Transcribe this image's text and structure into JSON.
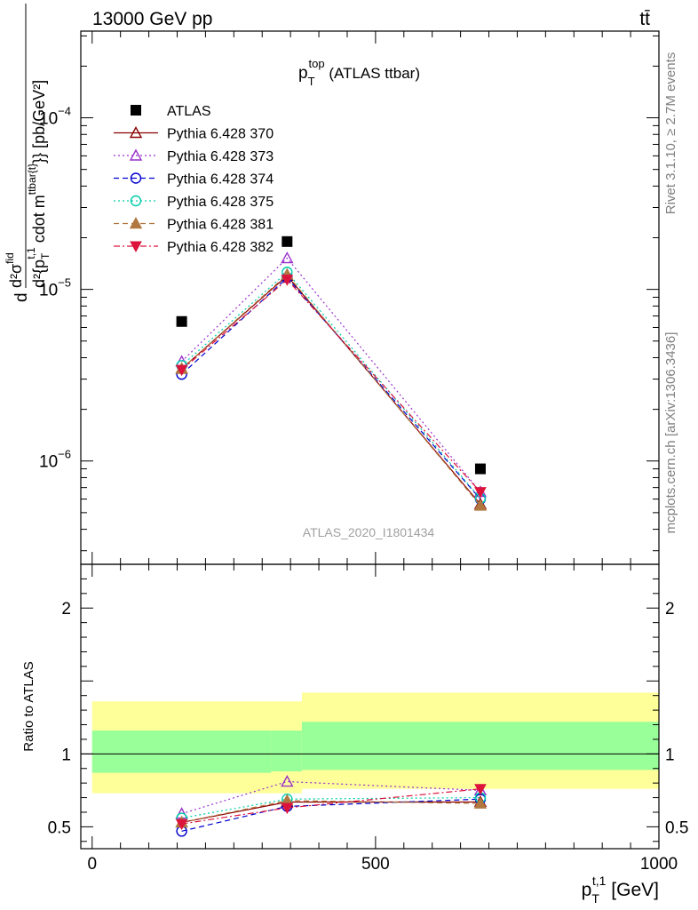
{
  "header": {
    "left": "13000 GeV pp",
    "right": "tt̄"
  },
  "side_labels": {
    "rivet": "Rivet 3.1.10, ≥ 2.7M events",
    "mcplots": "mcplots.cern.ch [arXiv:1306.3436]"
  },
  "chart_data": [
    {
      "type": "line",
      "title_main": "p",
      "title_sup": "top",
      "title_sub": "T",
      "title_rest": " (ATLAS ttbar)",
      "ylabel": "d²σ^fid / d²{p_T^{t,1} cdot m^{ttbar{t}}} [pb/GeV²]",
      "ylabel_parts": {
        "num": "d²σ",
        "num_sup": "fid",
        "den": "d²{p",
        "den_sup": "t,1",
        "den_sub": "T",
        "den_mid": " cdot m",
        "den_sup2": "ttbar{t}",
        "den_end": "}} [pb/GeV²]",
        "d": "d"
      },
      "yscale": "log",
      "xlim": [
        -20,
        1000
      ],
      "ylim": [
        2.5e-07,
        0.00032
      ],
      "ytick_labels": [
        {
          "value": 0.0001,
          "base": "10",
          "exp": "−4"
        },
        {
          "value": 1e-05,
          "base": "10",
          "exp": "−5"
        },
        {
          "value": 1e-06,
          "base": "10",
          "exp": "−6"
        }
      ],
      "watermark": "ATLAS_2020_I1801434",
      "legend_position": "top-left",
      "x": [
        158,
        344,
        685
      ],
      "series": [
        {
          "name": "ATLAS",
          "color": "#000000",
          "marker": "square-filled",
          "line": "none",
          "values": [
            6.5e-06,
            1.9e-05,
            9e-07
          ],
          "errors": [
            0,
            0,
            0
          ]
        },
        {
          "name": "Pythia 6.428 370",
          "color": "#8b0000",
          "marker": "triangle-open",
          "line": "solid",
          "values": [
            3.45e-06,
            1.2e-05,
            5.6e-07
          ]
        },
        {
          "name": "Pythia 6.428 373",
          "color": "#9932cc",
          "marker": "triangle-open",
          "line": "dotted",
          "values": [
            3.8e-06,
            1.52e-05,
            6.6e-07
          ]
        },
        {
          "name": "Pythia 6.428 374",
          "color": "#0000cd",
          "marker": "circle-open",
          "line": "dashed",
          "values": [
            3.2e-06,
            1.17e-05,
            6e-07
          ]
        },
        {
          "name": "Pythia 6.428 375",
          "color": "#00cdaa",
          "marker": "circle-open",
          "line": "dotted",
          "values": [
            3.6e-06,
            1.26e-05,
            6.05e-07
          ]
        },
        {
          "name": "Pythia 6.428 381",
          "color": "#b07840",
          "marker": "triangle-filled",
          "line": "dashed",
          "values": [
            3.45e-06,
            1.22e-05,
            5.5e-07
          ]
        },
        {
          "name": "Pythia 6.428 382",
          "color": "#dc143c",
          "marker": "triangle-down-filled",
          "line": "dashdot",
          "values": [
            3.4e-06,
            1.14e-05,
            6.6e-07
          ]
        }
      ]
    },
    {
      "type": "line",
      "ylabel": "Ratio to ATLAS",
      "xlabel_main": "p",
      "xlabel_sup": "t,1",
      "xlabel_sub": "T",
      "xlabel_unit": " [GeV]",
      "xlim": [
        -20,
        1000
      ],
      "ylim": [
        0.35,
        2.3
      ],
      "yticks": [
        0.5,
        1,
        2
      ],
      "ytick_labels": [
        "0.5",
        "1",
        "2"
      ],
      "xticks": [
        0,
        500,
        1000
      ],
      "xtick_labels": [
        "0",
        "500",
        "1000"
      ],
      "bands": [
        {
          "x": [
            0,
            316
          ],
          "inner": [
            0.87,
            1.16
          ],
          "outer": [
            0.73,
            1.36
          ]
        },
        {
          "x": [
            316,
            370
          ],
          "inner": [
            0.88,
            1.16
          ],
          "outer": [
            0.73,
            1.36
          ]
        },
        {
          "x": [
            370,
            1000
          ],
          "inner": [
            0.89,
            1.22
          ],
          "outer": [
            0.76,
            1.42
          ]
        }
      ],
      "band_colors": {
        "inner": "#99ff99",
        "outer": "#ffff99"
      },
      "x": [
        158,
        344,
        685
      ],
      "series": [
        {
          "name": "Pythia 6.428 370",
          "color": "#8b0000",
          "marker": "triangle-open",
          "line": "solid",
          "values": [
            0.53,
            0.67,
            0.67
          ]
        },
        {
          "name": "Pythia 6.428 373",
          "color": "#9932cc",
          "marker": "triangle-open",
          "line": "dotted",
          "values": [
            0.59,
            0.81,
            0.75
          ]
        },
        {
          "name": "Pythia 6.428 374",
          "color": "#0000cd",
          "marker": "circle-open",
          "line": "dashed",
          "values": [
            0.47,
            0.64,
            0.69
          ]
        },
        {
          "name": "Pythia 6.428 375",
          "color": "#00cdaa",
          "marker": "circle-open",
          "line": "dotted",
          "values": [
            0.56,
            0.69,
            0.7
          ]
        },
        {
          "name": "Pythia 6.428 381",
          "color": "#b07840",
          "marker": "triangle-filled",
          "line": "dashed",
          "values": [
            0.53,
            0.68,
            0.66
          ]
        },
        {
          "name": "Pythia 6.428 382",
          "color": "#dc143c",
          "marker": "triangle-down-filled",
          "line": "dashdot",
          "values": [
            0.52,
            0.63,
            0.76
          ]
        }
      ]
    }
  ]
}
